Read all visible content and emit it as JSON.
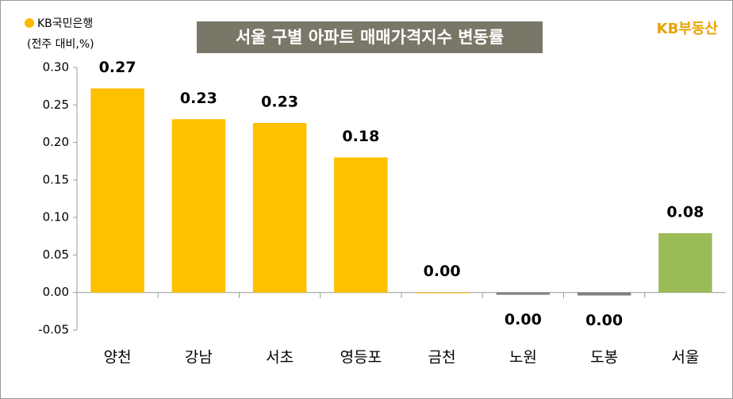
{
  "chart_data": {
    "type": "bar",
    "title": "서울 구별 아파트 매매가격지수 변동률",
    "brand_left": "KB국민은행",
    "brand_right": "KB부동산",
    "y_unit": "(전주 대비,%)",
    "categories": [
      "양천",
      "강남",
      "서초",
      "영등포",
      "금천",
      "노원",
      "도봉",
      "서울"
    ],
    "values": [
      0.272,
      0.231,
      0.226,
      0.18,
      0,
      -0.003,
      -0.004,
      0.079
    ],
    "value_labels": [
      "0.27",
      "0.23",
      "0.23",
      "0.18",
      "0.00",
      "0.00",
      "0.00",
      "0.08"
    ],
    "colors": [
      "#ffc000",
      "#ffc000",
      "#ffc000",
      "#ffc000",
      "#ffc000",
      "#7f7f7f",
      "#7f7f7f",
      "#9bbb59"
    ],
    "ylim": [
      -0.05,
      0.3
    ],
    "yticks": [
      {
        "value": -0.05,
        "label": "-0.05"
      },
      {
        "value": 0,
        "label": "0.00"
      },
      {
        "value": 0.05,
        "label": "0.05"
      },
      {
        "value": 0.1,
        "label": "0.10"
      },
      {
        "value": 0.15,
        "label": "0.15"
      },
      {
        "value": 0.2,
        "label": "0.20"
      },
      {
        "value": 0.25,
        "label": "0.25"
      },
      {
        "value": 0.3,
        "label": "0.30"
      }
    ],
    "grid": false
  }
}
